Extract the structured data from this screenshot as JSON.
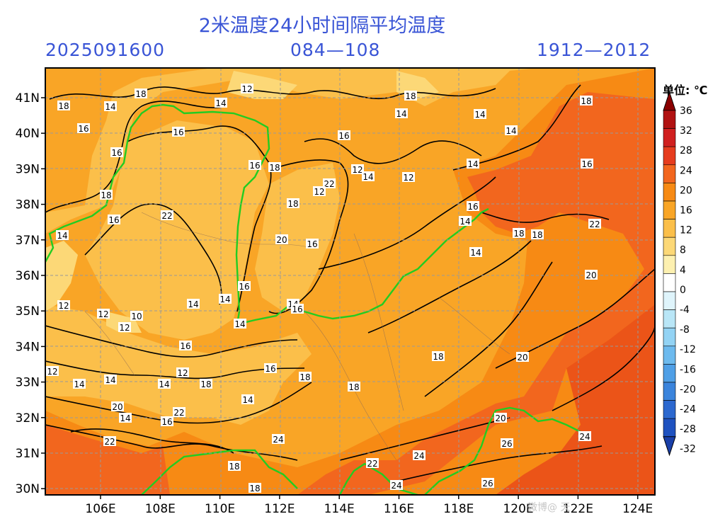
{
  "header": {
    "title": "2米温度24小时间隔平均温度",
    "date": "2025091600",
    "lead": "084—108",
    "range": "1912—2012"
  },
  "map": {
    "lat_labels": [
      "41N",
      "40N",
      "39N",
      "38N",
      "37N",
      "36N",
      "35N",
      "34N",
      "33N",
      "32N",
      "31N",
      "30N"
    ],
    "lon_labels": [
      "106E",
      "108E",
      "110E",
      "112E",
      "114E",
      "116E",
      "118E",
      "120E",
      "122E",
      "124E"
    ],
    "contour_labels": [
      "18",
      "14",
      "18",
      "16",
      "16",
      "18",
      "16",
      "14",
      "16",
      "12",
      "14",
      "16",
      "18",
      "14",
      "14",
      "14",
      "16",
      "18",
      "12",
      "14",
      "12",
      "14",
      "16",
      "14",
      "14",
      "18",
      "18",
      "22",
      "20",
      "18",
      "16",
      "22",
      "18",
      "20",
      "16",
      "22",
      "12",
      "12",
      "12",
      "10",
      "12",
      "14",
      "14",
      "16",
      "14",
      "14",
      "16",
      "16",
      "18",
      "18",
      "18",
      "20",
      "12",
      "14",
      "14",
      "12",
      "14",
      "18",
      "20",
      "14",
      "16",
      "14",
      "24",
      "16",
      "22",
      "22",
      "20",
      "24",
      "26",
      "24",
      "26",
      "18",
      "18",
      "22",
      "24"
    ],
    "colors": {
      "border": "#22cc22",
      "river": "#d88a4a",
      "grid": "#999999"
    }
  },
  "colorbar": {
    "unit_label": "单位: ℃",
    "ticks": [
      "36",
      "32",
      "28",
      "24",
      "20",
      "16",
      "12",
      "8",
      "4",
      "0",
      "-4",
      "-8",
      "-12",
      "-16",
      "-20",
      "-24",
      "-28",
      "-32"
    ],
    "colors": [
      "#b11212",
      "#d02020",
      "#e63c1e",
      "#f2661e",
      "#f78a14",
      "#f9a526",
      "#fbbf4a",
      "#fcd877",
      "#fdf0b0",
      "#ffffff",
      "#dff4fb",
      "#b9e6f7",
      "#93d3f4",
      "#6dbaee",
      "#4f9fe6",
      "#3b84dc",
      "#2c68cf",
      "#1f52c0"
    ],
    "top_color": "#8a0000",
    "bottom_color": "#1a3fa8"
  },
  "watermark": "微博@ 天"
}
